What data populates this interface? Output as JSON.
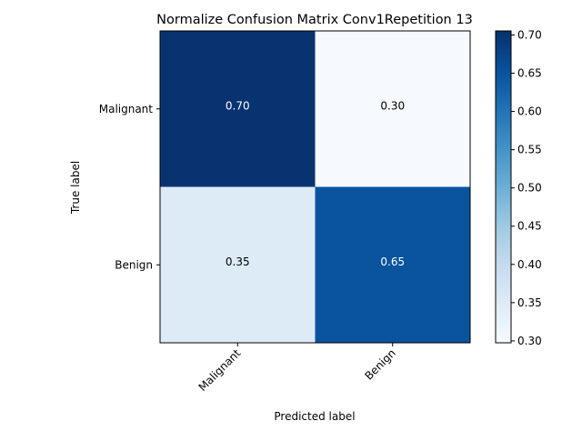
{
  "chart_data": {
    "type": "heatmap",
    "title": "Normalize Confusion Matrix Conv1Repetition 13",
    "xlabel": "Predicted label",
    "ylabel": "True label",
    "x_categories": [
      "Malignant",
      "Benign"
    ],
    "y_categories": [
      "Malignant",
      "Benign"
    ],
    "values": [
      [
        0.7,
        0.3
      ],
      [
        0.35,
        0.65
      ]
    ],
    "cell_labels": [
      [
        "0.70",
        "0.30"
      ],
      [
        "0.35",
        "0.65"
      ]
    ],
    "colormap": "Blues",
    "colorbar": {
      "range": [
        0.2975,
        0.7053
      ],
      "ticks": [
        0.3,
        0.35,
        0.4,
        0.45,
        0.5,
        0.55,
        0.6,
        0.65,
        0.7
      ],
      "tick_labels": [
        "0.30",
        "0.35",
        "0.40",
        "0.45",
        "0.50",
        "0.55",
        "0.60",
        "0.65",
        "0.70"
      ]
    },
    "colors": {
      "high": "#08306b",
      "low": "#f7fbff",
      "high_text": "#ffffff",
      "low_text": "#000000"
    }
  }
}
